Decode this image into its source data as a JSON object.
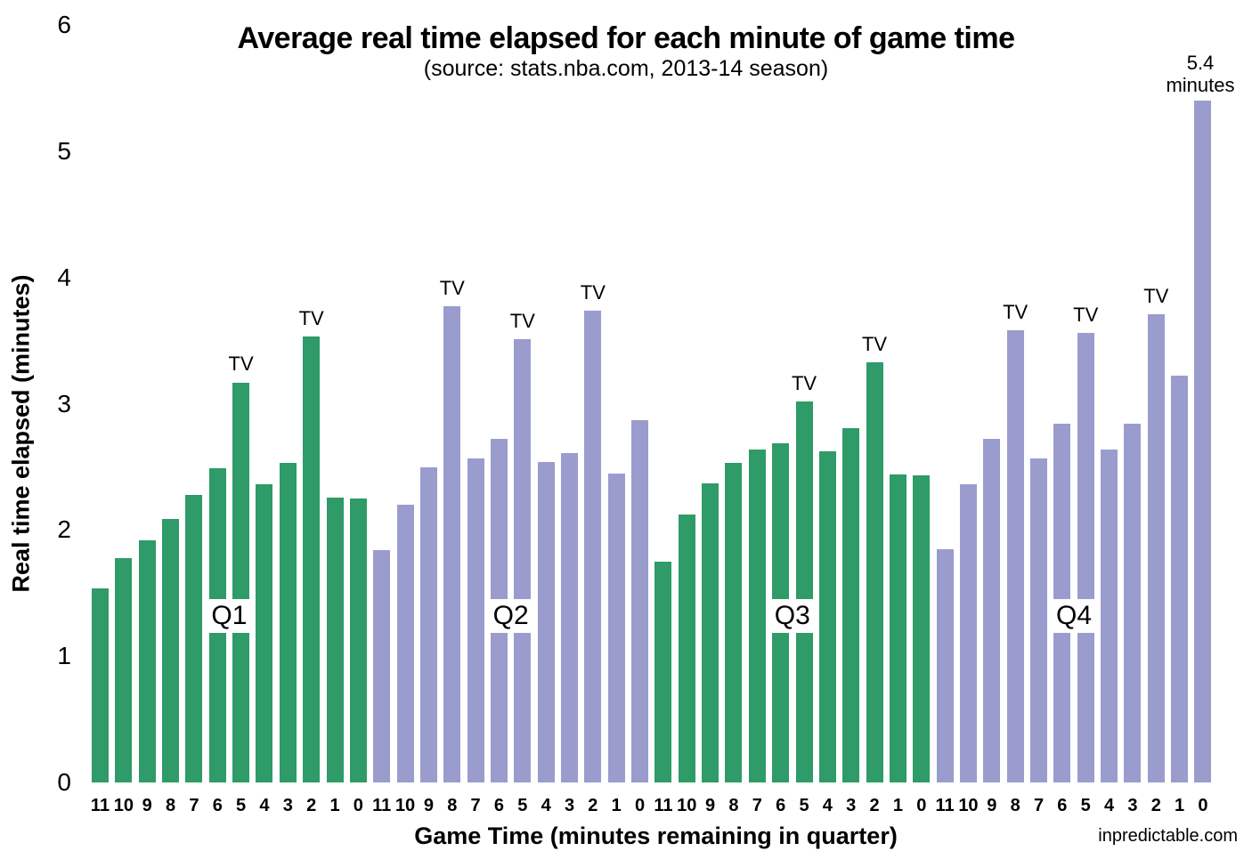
{
  "title": "Average real time elapsed for each minute of game time",
  "subtitle": "(source: stats.nba.com, 2013-14 season)",
  "watermark": "inpredictable.com",
  "peak_annotation": {
    "line1": "5.4",
    "line2": "minutes"
  },
  "tv_label_text": "TV",
  "colors": {
    "odd_quarter_bar": "#2E9B68",
    "even_quarter_bar": "#9A9CCE",
    "background": "#FFFFFF",
    "text": "#000000"
  },
  "chart_data": {
    "type": "bar",
    "title": "Average real time elapsed for each minute of game time",
    "subtitle": "(source: stats.nba.com, 2013-14 season)",
    "xlabel": "Game Time (minutes remaining in quarter)",
    "ylabel": "Real time elapsed (minutes)",
    "ylim": [
      0,
      6
    ],
    "yticks": [
      0,
      1,
      2,
      3,
      4,
      5,
      6
    ],
    "grid": false,
    "legend": false,
    "bar_unit": "minutes of real time per game minute",
    "quarters": [
      {
        "label": "Q1",
        "color": "#2E9B68",
        "minutes_remaining": [
          11,
          10,
          9,
          8,
          7,
          6,
          5,
          4,
          3,
          2,
          1,
          0
        ],
        "values": [
          1.54,
          1.78,
          1.92,
          2.09,
          2.28,
          2.49,
          3.17,
          2.36,
          2.53,
          3.53,
          2.26,
          2.25
        ],
        "tv_timeout_minutes": [
          5,
          2
        ]
      },
      {
        "label": "Q2",
        "color": "#9A9CCE",
        "minutes_remaining": [
          11,
          10,
          9,
          8,
          7,
          6,
          5,
          4,
          3,
          2,
          1,
          0
        ],
        "values": [
          1.84,
          2.2,
          2.5,
          3.77,
          2.57,
          2.72,
          3.51,
          2.54,
          2.61,
          3.74,
          2.45,
          2.87
        ],
        "tv_timeout_minutes": [
          8,
          5,
          2
        ]
      },
      {
        "label": "Q3",
        "color": "#2E9B68",
        "minutes_remaining": [
          11,
          10,
          9,
          8,
          7,
          6,
          5,
          4,
          3,
          2,
          1,
          0
        ],
        "values": [
          1.75,
          2.12,
          2.37,
          2.53,
          2.64,
          2.69,
          3.02,
          2.62,
          2.81,
          3.33,
          2.44,
          2.43
        ],
        "tv_timeout_minutes": [
          5,
          2
        ]
      },
      {
        "label": "Q4",
        "color": "#9A9CCE",
        "minutes_remaining": [
          11,
          10,
          9,
          8,
          7,
          6,
          5,
          4,
          3,
          2,
          1,
          0
        ],
        "values": [
          1.85,
          2.36,
          2.72,
          3.58,
          2.57,
          2.84,
          3.56,
          2.64,
          2.84,
          3.71,
          3.22,
          5.4
        ],
        "tv_timeout_minutes": [
          8,
          5,
          2
        ]
      }
    ],
    "annotations": [
      {
        "text": "5.4 minutes",
        "target": "Q4, 0 minutes remaining"
      },
      {
        "text": "TV",
        "meaning": "marks minutes containing a TV timeout"
      }
    ]
  }
}
